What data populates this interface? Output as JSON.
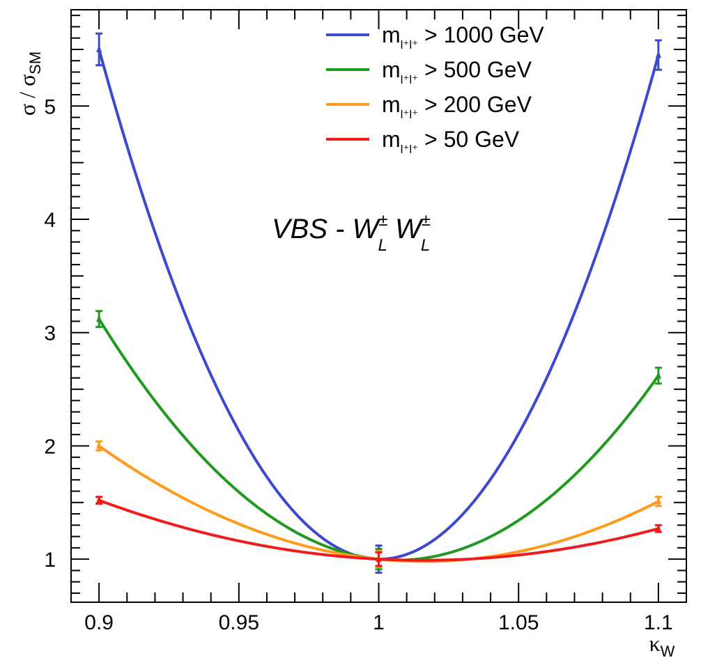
{
  "chart_data": {
    "type": "line",
    "title": "",
    "xlabel": {
      "main": "κ",
      "sub": "W"
    },
    "ylabel": {
      "main": "σ / σ",
      "sub": "SM"
    },
    "xlim": [
      0.89,
      1.11
    ],
    "ylim": [
      0.62,
      5.85
    ],
    "x_ticks": [
      0.9,
      0.95,
      1,
      1.05,
      1.1
    ],
    "x_tick_labels": [
      "0.9",
      "0.95",
      "1",
      "1.05",
      "1.1"
    ],
    "y_ticks": [
      1,
      2,
      3,
      4,
      5
    ],
    "y_tick_labels": [
      "1",
      "2",
      "3",
      "4",
      "5"
    ],
    "grid": false,
    "legend_position": "top-right",
    "annotation": {
      "prefix": "VBS - W",
      "sup1": "±",
      "sub1": "L",
      "mid": " W",
      "sup2": "±",
      "sub2": "L"
    },
    "series": [
      {
        "legend_main": "m",
        "legend_sub": "l⁺l⁺",
        "legend_rest": " > 1000 GeV",
        "color": "#3c48d0",
        "coeffs": [
          1,
          0.0,
          0.0,
          0.0
        ],
        "points": [
          {
            "x": 0.9,
            "y": 5.5,
            "err": 0.14
          },
          {
            "x": 1.0,
            "y": 1.0,
            "err": 0.12
          },
          {
            "x": 1.1,
            "y": 5.45,
            "err": 0.13
          }
        ]
      },
      {
        "legend_main": "m",
        "legend_sub": "l⁺l⁺",
        "legend_rest": " > 500 GeV",
        "color": "#1f9a1f",
        "points": [
          {
            "x": 0.9,
            "y": 3.12,
            "err": 0.07
          },
          {
            "x": 1.0,
            "y": 1.0,
            "err": 0.09
          },
          {
            "x": 1.1,
            "y": 2.62,
            "err": 0.07
          }
        ]
      },
      {
        "legend_main": "m",
        "legend_sub": "l⁺l⁺",
        "legend_rest": " > 200 GeV",
        "color": "#ff9a1a",
        "points": [
          {
            "x": 0.9,
            "y": 2.0,
            "err": 0.04
          },
          {
            "x": 1.0,
            "y": 1.0,
            "err": 0.07
          },
          {
            "x": 1.1,
            "y": 1.51,
            "err": 0.04
          }
        ]
      },
      {
        "legend_main": "m",
        "legend_sub": "l⁺l⁺",
        "legend_rest": " > 50 GeV",
        "color": "#ee1c1c",
        "points": [
          {
            "x": 0.9,
            "y": 1.52,
            "err": 0.03
          },
          {
            "x": 1.0,
            "y": 1.0,
            "err": 0.06
          },
          {
            "x": 1.1,
            "y": 1.27,
            "err": 0.03
          }
        ]
      }
    ]
  }
}
